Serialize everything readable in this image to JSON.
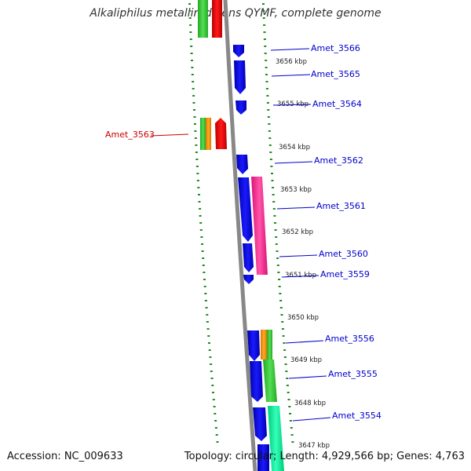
{
  "title": "Alkaliphilus metalliredigens QYMF, complete genome",
  "footer": {
    "accession": "Accession: NC_009633",
    "stats": "Topology: circular; Length: 4,929,566 bp; Genes: 4,763"
  },
  "ticks": [
    "3656 kbp",
    "3655 kbp",
    "3654 kbp",
    "3653 kbp",
    "3652 kbp",
    "3651 kbp",
    "3650 kbp",
    "3649 kbp",
    "3648 kbp",
    "3647 kbp"
  ],
  "genes": [
    {
      "id": "Amet_3566",
      "color": "#0000cc"
    },
    {
      "id": "Amet_3565",
      "color": "#0000cc"
    },
    {
      "id": "Amet_3564",
      "color": "#0000cc"
    },
    {
      "id": "Amet_3563",
      "color": "#cc0000"
    },
    {
      "id": "Amet_3562",
      "color": "#0000cc"
    },
    {
      "id": "Amet_3561",
      "color": "#0000cc"
    },
    {
      "id": "Amet_3560",
      "color": "#0000cc"
    },
    {
      "id": "Amet_3559",
      "color": "#0000cc"
    },
    {
      "id": "Amet_3556",
      "color": "#0000cc"
    },
    {
      "id": "Amet_3555",
      "color": "#0000cc"
    },
    {
      "id": "Amet_3554",
      "color": "#0000cc"
    }
  ],
  "colors": {
    "cds_blue": "#0000ee",
    "red": "#ee0000",
    "green": "#33cc33",
    "orange": "#ff9900",
    "pink": "#ff3399",
    "teal": "#00ee99",
    "backbone": "#888888",
    "dotted": "#228b22"
  }
}
